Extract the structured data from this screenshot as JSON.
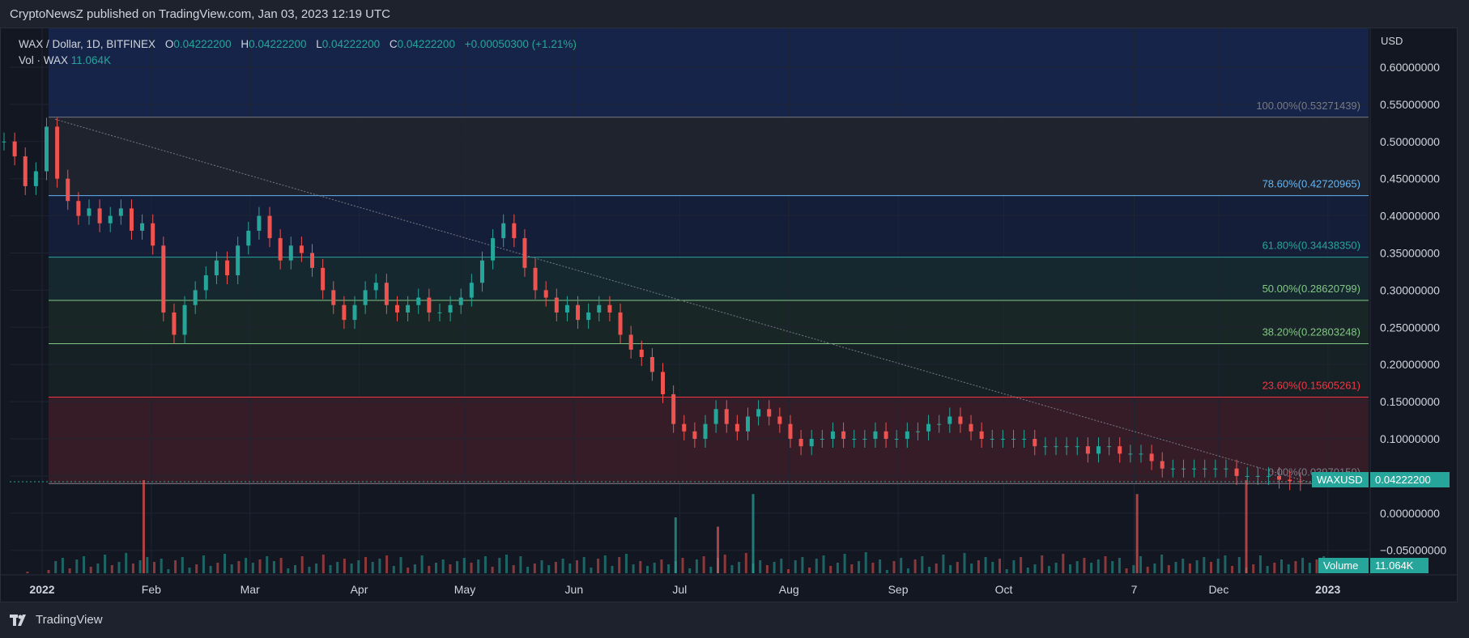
{
  "header": {
    "publisher": "CryptoNewsZ published on TradingView.com, Jan 03, 2023 12:19 UTC"
  },
  "legend": {
    "symbol": "WAX / Dollar, 1D, BITFINEX",
    "o_label": "O",
    "o": "0.04222200",
    "h_label": "H",
    "h": "0.04222200",
    "l_label": "L",
    "l": "0.04222200",
    "c_label": "C",
    "c": "0.04222200",
    "change": "+0.00050300 (+1.21%)",
    "vol_label": "Vol · WAX",
    "vol": "11.064K"
  },
  "badges": {
    "symbol": "WAXUSD",
    "price": "0.04222200",
    "volume_label": "Volume",
    "volume": "11.064K"
  },
  "footer": {
    "brand": "TradingView"
  },
  "colors": {
    "up": "#26a69a",
    "down": "#ef5350",
    "background": "#131722"
  },
  "chart_data": {
    "type": "candlestick",
    "currency": "USD",
    "y_ticks": [
      "0.60000000",
      "0.55000000",
      "0.50000000",
      "0.45000000",
      "0.40000000",
      "0.35000000",
      "0.30000000",
      "0.25000000",
      "0.20000000",
      "0.15000000",
      "0.10000000",
      "0.05000000",
      "0.00000000",
      "−0.05000000"
    ],
    "y_tick_values": [
      0.6,
      0.55,
      0.5,
      0.45,
      0.4,
      0.35,
      0.3,
      0.25,
      0.2,
      0.15,
      0.1,
      0.05,
      0.0,
      -0.05
    ],
    "x_ticks": [
      "2022",
      "Feb",
      "Mar",
      "Apr",
      "May",
      "Jun",
      "Jul",
      "Aug",
      "Sep",
      "Oct",
      "7",
      "Dec",
      "2023"
    ],
    "x_tick_days": [
      0,
      31,
      59,
      90,
      120,
      151,
      181,
      212,
      243,
      273,
      310,
      334,
      365
    ],
    "fib_levels": [
      {
        "label": "100.00%(0.53271439)",
        "value": 0.53271439,
        "color": "#787b86"
      },
      {
        "label": "78.60%(0.42720965)",
        "value": 0.42720965,
        "color": "#64b5f6"
      },
      {
        "label": "61.80%(0.34438350)",
        "value": 0.3443835,
        "color": "#26a69a"
      },
      {
        "label": "50.00%(0.28620799)",
        "value": 0.28620799,
        "color": "#81c784"
      },
      {
        "label": "38.20%(0.22803248)",
        "value": 0.22803248,
        "color": "#81c784"
      },
      {
        "label": "23.60%(0.15605261)",
        "value": 0.15605261,
        "color": "#f23645"
      },
      {
        "label": "0.00%(0.03970159)",
        "value": 0.03970159,
        "color": "#787b86"
      }
    ],
    "closes": [
      0.5,
      0.48,
      0.44,
      0.46,
      0.52,
      0.45,
      0.42,
      0.4,
      0.41,
      0.39,
      0.4,
      0.41,
      0.38,
      0.39,
      0.36,
      0.27,
      0.24,
      0.28,
      0.3,
      0.32,
      0.34,
      0.32,
      0.36,
      0.38,
      0.4,
      0.37,
      0.34,
      0.36,
      0.35,
      0.33,
      0.3,
      0.28,
      0.26,
      0.28,
      0.3,
      0.31,
      0.28,
      0.27,
      0.28,
      0.29,
      0.27,
      0.27,
      0.28,
      0.29,
      0.31,
      0.34,
      0.37,
      0.39,
      0.37,
      0.33,
      0.3,
      0.29,
      0.27,
      0.28,
      0.26,
      0.27,
      0.28,
      0.27,
      0.24,
      0.22,
      0.21,
      0.19,
      0.16,
      0.12,
      0.11,
      0.1,
      0.12,
      0.14,
      0.12,
      0.11,
      0.13,
      0.14,
      0.13,
      0.12,
      0.1,
      0.09,
      0.1,
      0.1,
      0.11,
      0.1,
      0.1,
      0.1,
      0.11,
      0.1,
      0.1,
      0.11,
      0.11,
      0.12,
      0.12,
      0.13,
      0.12,
      0.11,
      0.1,
      0.1,
      0.1,
      0.1,
      0.1,
      0.09,
      0.09,
      0.09,
      0.09,
      0.09,
      0.08,
      0.09,
      0.09,
      0.08,
      0.08,
      0.08,
      0.07,
      0.06,
      0.06,
      0.06,
      0.06,
      0.06,
      0.06,
      0.06,
      0.05,
      0.05,
      0.05,
      0.05,
      0.045,
      0.043,
      0.042
    ],
    "volume_spikes": [
      {
        "day": 27,
        "value": 1.0,
        "dir": "down"
      },
      {
        "day": 200,
        "value": 0.85,
        "dir": "up"
      },
      {
        "day": 309,
        "value": 0.85,
        "dir": "down"
      },
      {
        "day": 340,
        "value": 1.0,
        "dir": "down"
      },
      {
        "day": 178,
        "value": 0.6,
        "dir": "up"
      },
      {
        "day": 190,
        "value": 0.5,
        "dir": "down"
      }
    ]
  }
}
